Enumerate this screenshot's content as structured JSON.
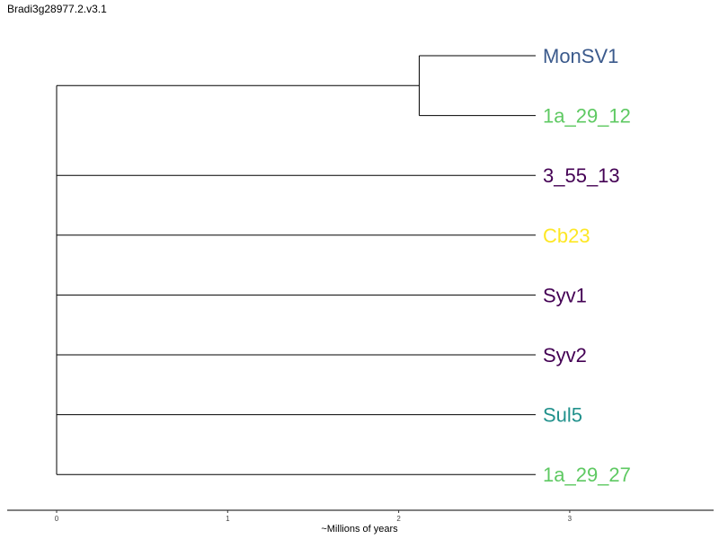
{
  "title": "Bradi3g28977.2.v3.1",
  "chart_data": {
    "type": "tree",
    "xlabel": "~Millions of years",
    "xticks": [
      "0",
      "1",
      "2",
      "3"
    ],
    "xlim": [
      0,
      3
    ],
    "clade_node_age": 2.12,
    "tips": [
      {
        "name": "MonSV1",
        "color": "#3b5a8c"
      },
      {
        "name": "1a_29_12",
        "color": "#5ec962"
      },
      {
        "name": "3_55_13",
        "color": "#440154"
      },
      {
        "name": "Cb23",
        "color": "#fde725"
      },
      {
        "name": "Syv1",
        "color": "#440154"
      },
      {
        "name": "Syv2",
        "color": "#440154"
      },
      {
        "name": "Sul5",
        "color": "#21918c"
      },
      {
        "name": "1a_29_27",
        "color": "#5ec962"
      }
    ]
  }
}
